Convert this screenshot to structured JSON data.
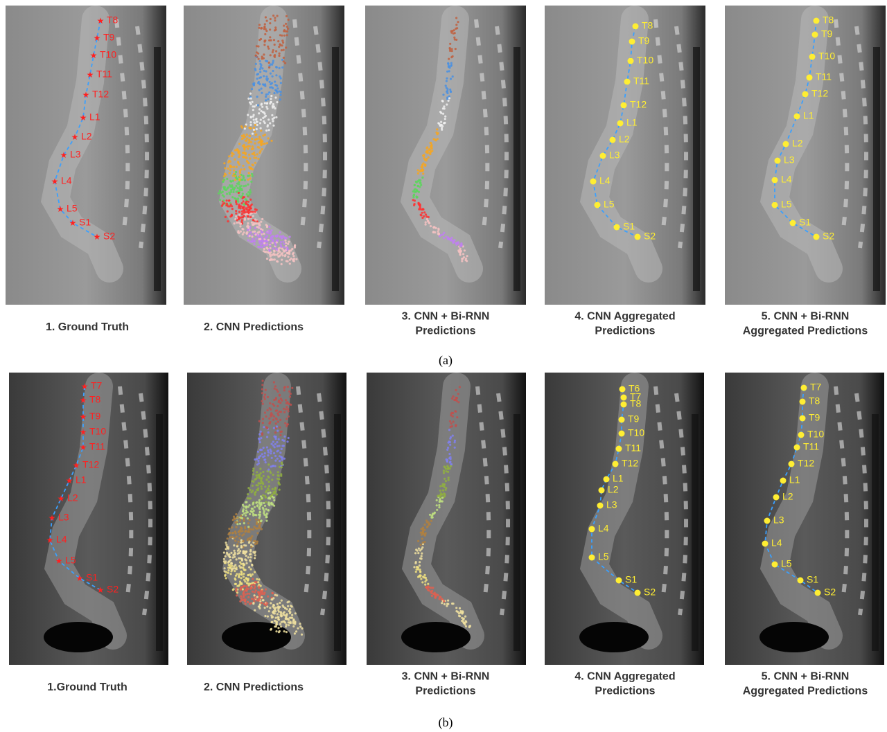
{
  "rows": [
    {
      "caption": "(a)",
      "panels": [
        {
          "caption": [
            "1. Ground Truth"
          ],
          "labels": [
            "T8",
            "T9",
            "T10",
            "T11",
            "T12",
            "L1",
            "L2",
            "L3",
            "L4",
            "L5",
            "S1",
            "S2"
          ]
        },
        {
          "caption": [
            "2. CNN Predictions"
          ]
        },
        {
          "caption": [
            "3. CNN + Bi-RNN",
            "Predictions"
          ]
        },
        {
          "caption": [
            "4. CNN Aggregated",
            "Predictions"
          ],
          "labels": [
            "T8",
            "T9",
            "T10",
            "T11",
            "T12",
            "L1",
            "L2",
            "L3",
            "L4",
            "L5",
            "S1",
            "S2"
          ]
        },
        {
          "caption": [
            "5. CNN + Bi-RNN",
            "Aggregated Predictions"
          ],
          "labels": [
            "T8",
            "T9",
            "T10",
            "T11",
            "T12",
            "L1",
            "L2",
            "L3",
            "L4",
            "L5",
            "S1",
            "S2"
          ]
        }
      ]
    },
    {
      "caption": "(b)",
      "panels": [
        {
          "caption": [
            "1.Ground Truth"
          ],
          "labels": [
            "T7",
            "T8",
            "T9",
            "T10",
            "T11",
            "T12",
            "L1",
            "L2",
            "L3",
            "L4",
            "L5",
            "S1",
            "S2"
          ]
        },
        {
          "caption": [
            "2. CNN Predictions"
          ]
        },
        {
          "caption": [
            "3. CNN + Bi-RNN",
            "Predictions"
          ]
        },
        {
          "caption": [
            "4. CNN Aggregated",
            "Predictions"
          ],
          "labels": [
            "T6",
            "T7",
            "T8",
            "T9",
            "T10",
            "T11",
            "T12",
            "L1",
            "L2",
            "L3",
            "L4",
            "L5",
            "S1",
            "S2"
          ]
        },
        {
          "caption": [
            "5. CNN + Bi-RNN",
            "Aggregated Predictions"
          ],
          "labels": [
            "T7",
            "T8",
            "T9",
            "T10",
            "T11",
            "T12",
            "L1",
            "L2",
            "L3",
            "L4",
            "L5",
            "S1",
            "S2"
          ]
        }
      ]
    }
  ]
}
